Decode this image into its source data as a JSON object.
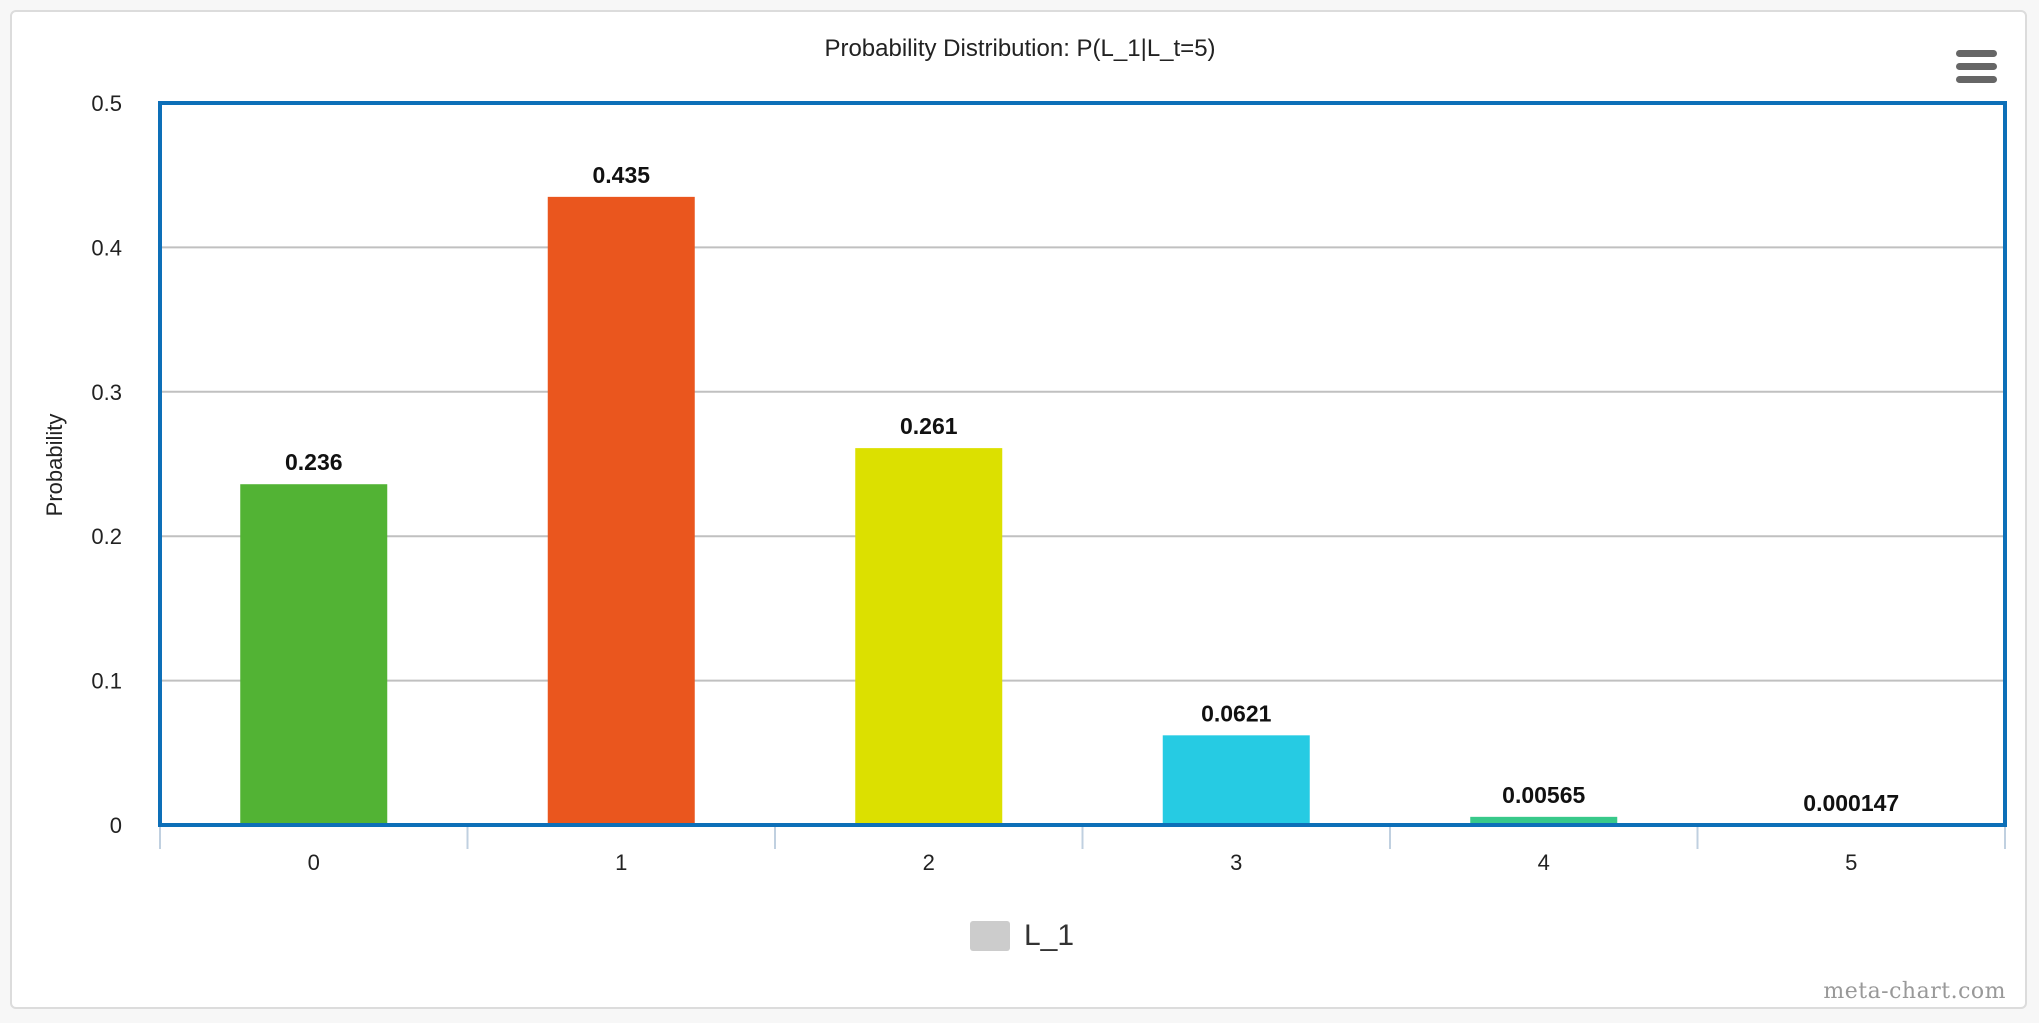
{
  "chart_data": {
    "type": "bar",
    "title": "Probability Distribution: P(L_1|L_t=5)",
    "xlabel": "",
    "ylabel": "Probability",
    "categories": [
      "0",
      "1",
      "2",
      "3",
      "4",
      "5"
    ],
    "series": [
      {
        "name": "L_1",
        "values": [
          0.236,
          0.435,
          0.261,
          0.0621,
          0.00565,
          0.000147
        ],
        "data_labels": [
          "0.236",
          "0.435",
          "0.261",
          "0.0621",
          "0.00565",
          "0.000147"
        ]
      }
    ],
    "bar_colors": [
      "#52b334",
      "#ea561e",
      "#dce000",
      "#26cbe3",
      "#38c98a",
      "#b9a5e0"
    ],
    "ylim": [
      0,
      0.5
    ],
    "yticks": [
      "0",
      "0.1",
      "0.2",
      "0.3",
      "0.4",
      "0.5"
    ],
    "grid": true,
    "legend_position": "bottom-center",
    "plot_border_color": "#0d6fb8"
  },
  "legend": {
    "label": "L_1",
    "swatch_color": "#cccccc"
  },
  "menu": {
    "icon": "hamburger-menu-icon"
  },
  "credit": "meta-chart.com"
}
